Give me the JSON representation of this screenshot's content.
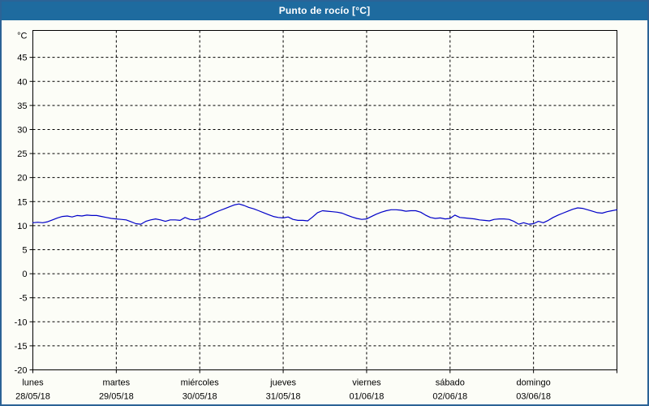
{
  "window": {
    "title": "Punto de rocío [°C]"
  },
  "colors": {
    "titlebar_bg": "#1E6B9F",
    "window_border": "#2B6396",
    "page_bg": "#FCFDF7",
    "line": "#0000C8",
    "grid": "#000000",
    "text": "#000000"
  },
  "chart_data": {
    "type": "line",
    "title": "Punto de rocío [°C]",
    "ylabel": "°C",
    "ylim": [
      -20,
      50.6
    ],
    "yticks": [
      45,
      40,
      35,
      30,
      25,
      20,
      15,
      10,
      5,
      0,
      -5,
      -10,
      -15,
      -20
    ],
    "grid": "dashed horizontal gridlines at y ticks, dashed vertical gridlines at day boundaries",
    "legend_position": "none",
    "x_categories": [
      {
        "name": "lunes",
        "date": "28/05/18"
      },
      {
        "name": "martes",
        "date": "29/05/18"
      },
      {
        "name": "miércoles",
        "date": "30/05/18"
      },
      {
        "name": "jueves",
        "date": "31/05/18"
      },
      {
        "name": "viernes",
        "date": "01/06/18"
      },
      {
        "name": "sábado",
        "date": "02/06/18"
      },
      {
        "name": "domingo",
        "date": "03/06/18"
      }
    ],
    "series": [
      {
        "name": "Punto de rocío",
        "color": "#0000C8",
        "values": [
          10.6,
          10.7,
          10.6,
          10.8,
          11.2,
          11.6,
          11.9,
          12.0,
          11.8,
          12.1,
          12.0,
          12.2,
          12.1,
          12.1,
          11.9,
          11.7,
          11.5,
          11.4,
          11.3,
          11.2,
          10.8,
          10.4,
          10.3,
          10.9,
          11.2,
          11.4,
          11.2,
          10.9,
          11.2,
          11.2,
          11.1,
          11.7,
          11.3,
          11.2,
          11.4,
          11.7,
          12.2,
          12.7,
          13.1,
          13.5,
          13.9,
          14.3,
          14.5,
          14.2,
          13.8,
          13.5,
          13.1,
          12.7,
          12.3,
          11.9,
          11.7,
          11.6,
          11.8,
          11.3,
          11.1,
          11.1,
          11.0,
          11.8,
          12.7,
          13.1,
          13.0,
          12.9,
          12.8,
          12.6,
          12.2,
          11.8,
          11.5,
          11.3,
          11.4,
          11.9,
          12.4,
          12.8,
          13.1,
          13.3,
          13.3,
          13.2,
          13.0,
          13.1,
          13.1,
          12.8,
          12.2,
          11.7,
          11.5,
          11.6,
          11.4,
          11.5,
          12.2,
          11.7,
          11.6,
          11.5,
          11.4,
          11.2,
          11.1,
          11.0,
          11.3,
          11.4,
          11.4,
          11.3,
          10.9,
          10.3,
          10.6,
          10.3,
          10.4,
          10.9,
          10.6,
          11.1,
          11.7,
          12.2,
          12.6,
          13.0,
          13.4,
          13.7,
          13.6,
          13.3,
          13.0,
          12.7,
          12.6,
          12.9,
          13.1,
          13.3
        ]
      }
    ]
  }
}
